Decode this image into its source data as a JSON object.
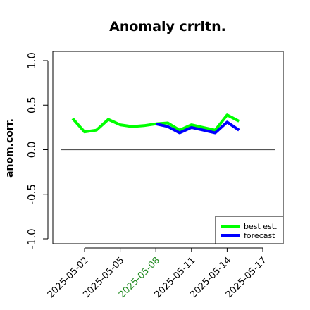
{
  "chart_data": {
    "type": "line",
    "title": "Anomaly crrltn.",
    "ylabel": "anom.corr.",
    "xlabel": "",
    "ylim": [
      -1.0,
      1.0
    ],
    "yticks": [
      "-1.0",
      "-0.5",
      "0.0",
      "0.5",
      "1.0"
    ],
    "x_tick_labels": [
      "2025-05-02",
      "2025-05-05",
      "2025-05-08",
      "2025-05-11",
      "2025-05-14",
      "2025-05-17"
    ],
    "highlighted_tick": "2025-05-08",
    "highlight_color": "#228b22",
    "reference_line": 0.0,
    "grid": false,
    "legend_position": "bottom-right",
    "series": [
      {
        "name": "best est.",
        "color": "#00ff00",
        "x": [
          "2025-05-01",
          "2025-05-02",
          "2025-05-03",
          "2025-05-04",
          "2025-05-05",
          "2025-05-06",
          "2025-05-07",
          "2025-05-08",
          "2025-05-09",
          "2025-05-10",
          "2025-05-11",
          "2025-05-12",
          "2025-05-13",
          "2025-05-14",
          "2025-05-15",
          "2025-05-16"
        ],
        "values": [
          0.35,
          0.2,
          0.22,
          0.34,
          0.28,
          0.26,
          0.27,
          0.29,
          0.3,
          0.22,
          0.28,
          0.25,
          0.22,
          0.39,
          0.32,
          null
        ]
      },
      {
        "name": "forecast",
        "color": "#0000ff",
        "x": [
          "2025-05-08",
          "2025-05-09",
          "2025-05-10",
          "2025-05-11",
          "2025-05-12",
          "2025-05-13",
          "2025-05-14",
          "2025-05-15"
        ],
        "values": [
          0.29,
          0.26,
          0.19,
          0.25,
          0.22,
          0.19,
          0.31,
          0.22
        ]
      }
    ]
  }
}
